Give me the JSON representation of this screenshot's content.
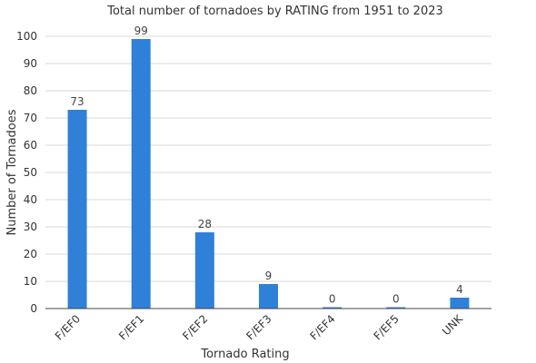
{
  "chart_data": {
    "type": "bar",
    "title": "Total number of tornadoes by RATING from 1951 to 2023",
    "xlabel": "Tornado Rating",
    "ylabel": "Number of Tornadoes",
    "categories": [
      "F/EF0",
      "F/EF1",
      "F/EF2",
      "F/EF3",
      "F/EF4",
      "F/EF5",
      "UNK"
    ],
    "values": [
      73,
      99,
      28,
      9,
      0,
      0,
      4
    ],
    "ylim": [
      0,
      100
    ],
    "yticks": [
      0,
      10,
      20,
      30,
      40,
      50,
      60,
      70,
      80,
      90,
      100
    ],
    "grid": true,
    "legend": "none",
    "bar_color": "#2f80d8"
  }
}
